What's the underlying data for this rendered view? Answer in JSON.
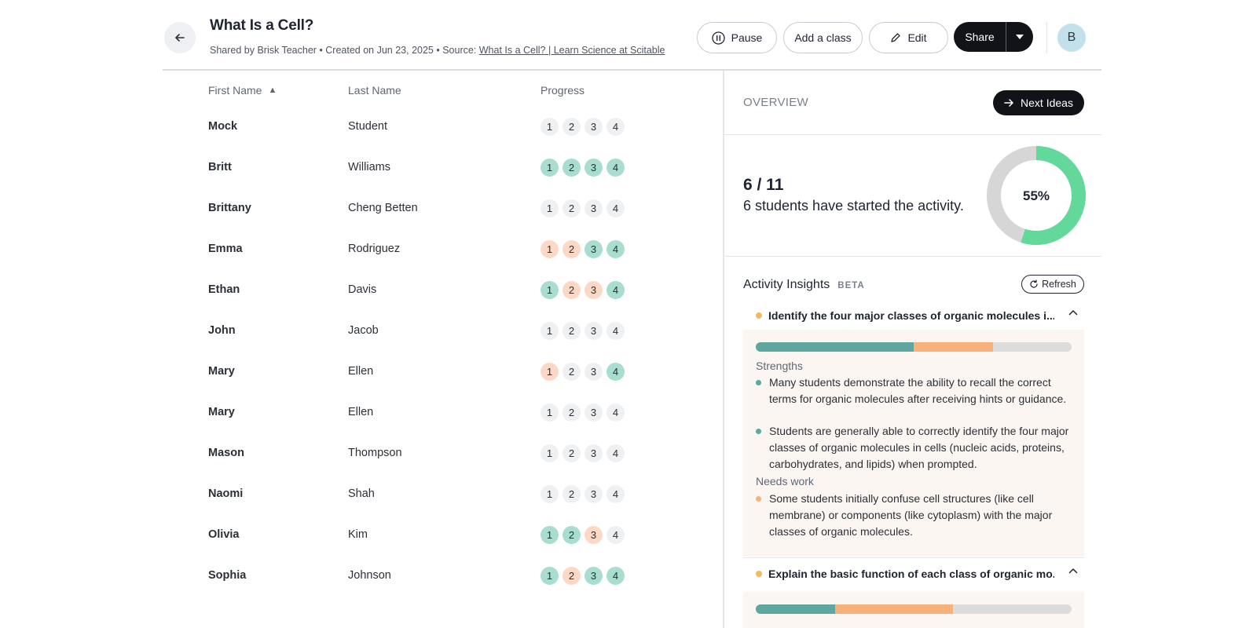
{
  "header": {
    "title": "What Is a Cell?",
    "meta_prefix": "Shared by Brisk Teacher • Created on Jun 23, 2025 • Source: ",
    "source_link": "What Is a Cell? | Learn Science at Scitable",
    "buttons": {
      "pause": "Pause",
      "add_class": "Add a class",
      "edit": "Edit",
      "share": "Share"
    },
    "avatar_initial": "B"
  },
  "table": {
    "columns": {
      "first": "First Name",
      "last": "Last Name",
      "progress": "Progress"
    },
    "sort_indicator": "▲",
    "rows": [
      {
        "first": "Mock",
        "last": "Student",
        "steps": [
          "n",
          "n",
          "n",
          "n"
        ]
      },
      {
        "first": "Britt",
        "last": "Williams",
        "steps": [
          "g",
          "g",
          "g",
          "g"
        ]
      },
      {
        "first": "Brittany",
        "last": "Cheng Betten",
        "steps": [
          "n",
          "n",
          "n",
          "n"
        ]
      },
      {
        "first": "Emma",
        "last": "Rodriguez",
        "steps": [
          "o",
          "o",
          "g",
          "g"
        ]
      },
      {
        "first": "Ethan",
        "last": "Davis",
        "steps": [
          "g",
          "o",
          "o",
          "g"
        ]
      },
      {
        "first": "John",
        "last": "Jacob",
        "steps": [
          "n",
          "n",
          "n",
          "n"
        ]
      },
      {
        "first": "Mary",
        "last": "Ellen",
        "steps": [
          "o",
          "n",
          "n",
          "g"
        ]
      },
      {
        "first": "Mary",
        "last": "Ellen",
        "steps": [
          "n",
          "n",
          "n",
          "n"
        ]
      },
      {
        "first": "Mason",
        "last": "Thompson",
        "steps": [
          "n",
          "n",
          "n",
          "n"
        ]
      },
      {
        "first": "Naomi",
        "last": "Shah",
        "steps": [
          "n",
          "n",
          "n",
          "n"
        ]
      },
      {
        "first": "Olivia",
        "last": "Kim",
        "steps": [
          "g",
          "g",
          "o",
          "n"
        ]
      },
      {
        "first": "Sophia",
        "last": "Johnson",
        "steps": [
          "g",
          "o",
          "g",
          "g"
        ]
      }
    ],
    "step_labels": [
      "1",
      "2",
      "3",
      "4"
    ]
  },
  "overview": {
    "label": "OVERVIEW",
    "next_ideas": "Next Ideas",
    "count": "6 / 11",
    "description": "6 students have started the activity.",
    "percent_label": "55%",
    "percent_value": 0.55,
    "colors": {
      "filled": "#62d89a",
      "empty": "#d6d6d6"
    }
  },
  "insights": {
    "title": "Activity Insights",
    "beta": "BETA",
    "refresh": "Refresh",
    "items": [
      {
        "title": "Identify the four major classes of organic molecules i...",
        "bar": {
          "green": 0.5,
          "orange": 0.25
        },
        "strengths_label": "Strengths",
        "strengths": [
          "Many students demonstrate the ability to recall the correct terms for organic molecules after receiving hints or guidance.",
          "Students are generally able to correctly identify the four major classes of organic molecules in cells (nucleic acids, proteins, carbohydrates, and lipids) when prompted."
        ],
        "needs_label": "Needs work",
        "needs": [
          "Some students initially confuse cell structures (like cell membrane) or components (like cytoplasm) with the major classes of organic molecules."
        ]
      },
      {
        "title": "Explain the basic function of each class of organic mo...",
        "bar": {
          "green": 0.25,
          "orange": 0.375
        }
      }
    ]
  }
}
